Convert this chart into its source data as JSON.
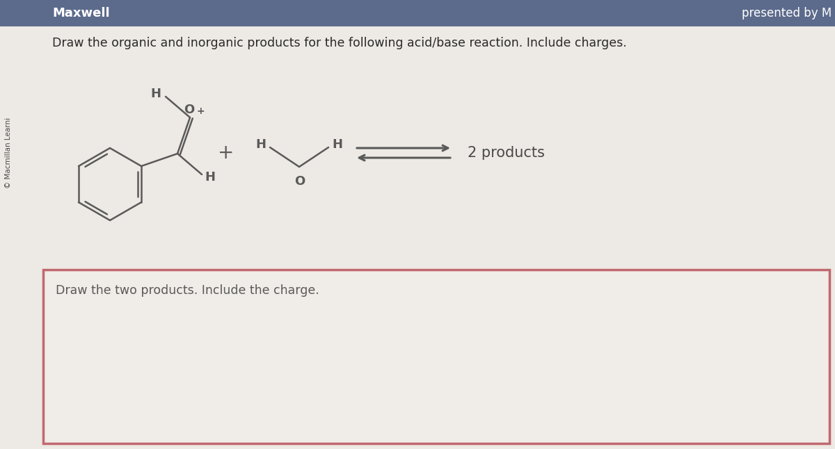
{
  "bg_color": "#ede9e4",
  "header_bg": "#5c6b8c",
  "header_text_left": "Maxwell",
  "header_text_right": "presented by M",
  "header_text_color": "#ffffff",
  "question_text": "Draw the organic and inorganic products for the following acid/base reaction. Include charges.",
  "question_text_color": "#2a2a2a",
  "side_label": "© Macmillan Learni",
  "answer_box_text": "Draw the two products. Include the charge.",
  "answer_box_border": "#c0686e",
  "answer_box_bg": "#f0ece7",
  "products_label": "2 products",
  "line_color": "#5a5a5a",
  "text_color": "#4a4a4a",
  "plus_color": "#5a5a5a"
}
